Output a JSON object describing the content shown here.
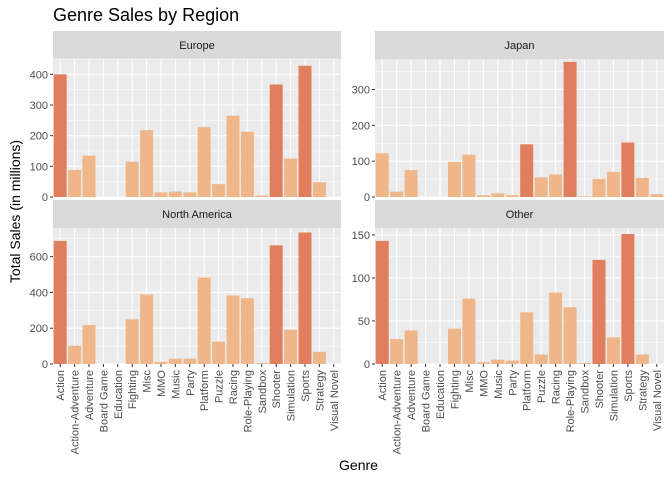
{
  "chart_data": {
    "type": "bar",
    "title": "Genre Sales by Region",
    "xlabel": "Genre",
    "ylabel": "Total Sales (in millions)",
    "categories": [
      "Action",
      "Action-Adventure",
      "Adventure",
      "Board Game",
      "Education",
      "Fighting",
      "Misc",
      "MMO",
      "Music",
      "Party",
      "Platform",
      "Puzzle",
      "Racing",
      "Role-Playing",
      "Sandbox",
      "Shooter",
      "Simulation",
      "Sports",
      "Strategy",
      "Visual Novel"
    ],
    "colors": {
      "panel_bg": "#ebebeb",
      "strip_bg": "#d9d9d9",
      "grid": "#ffffff",
      "top3": "#e07e5e",
      "other": "#efb68a"
    },
    "panels": [
      {
        "name": "Europe",
        "ylim": [
          0,
          450
        ],
        "yticks": [
          0,
          100,
          200,
          300,
          400
        ],
        "values": [
          400,
          88,
          135,
          0,
          0,
          115,
          218,
          15,
          18,
          15,
          228,
          42,
          265,
          213,
          5,
          367,
          125,
          428,
          48,
          0
        ],
        "highlight": [
          0,
          15,
          17
        ]
      },
      {
        "name": "Japan",
        "ylim": [
          0,
          385
        ],
        "yticks": [
          0,
          100,
          200,
          300
        ],
        "values": [
          122,
          15,
          75,
          0,
          0,
          98,
          118,
          5,
          10,
          5,
          147,
          55,
          63,
          377,
          2,
          50,
          70,
          152,
          53,
          8
        ],
        "highlight": [
          13,
          10,
          17
        ]
      },
      {
        "name": "North America",
        "ylim": [
          0,
          760
        ],
        "yticks": [
          0,
          200,
          400,
          600
        ],
        "values": [
          688,
          102,
          218,
          0,
          0,
          250,
          388,
          12,
          30,
          30,
          483,
          125,
          383,
          368,
          5,
          663,
          192,
          735,
          68,
          0
        ],
        "highlight": [
          0,
          15,
          17
        ]
      },
      {
        "name": "Other",
        "ylim": [
          0,
          158
        ],
        "yticks": [
          0,
          50,
          100,
          150
        ],
        "values": [
          143,
          29,
          39,
          0,
          0,
          41,
          76,
          2,
          5,
          4,
          60,
          11,
          83,
          66,
          1,
          121,
          31,
          151,
          11,
          0
        ],
        "highlight": [
          0,
          15,
          17
        ]
      }
    ]
  }
}
